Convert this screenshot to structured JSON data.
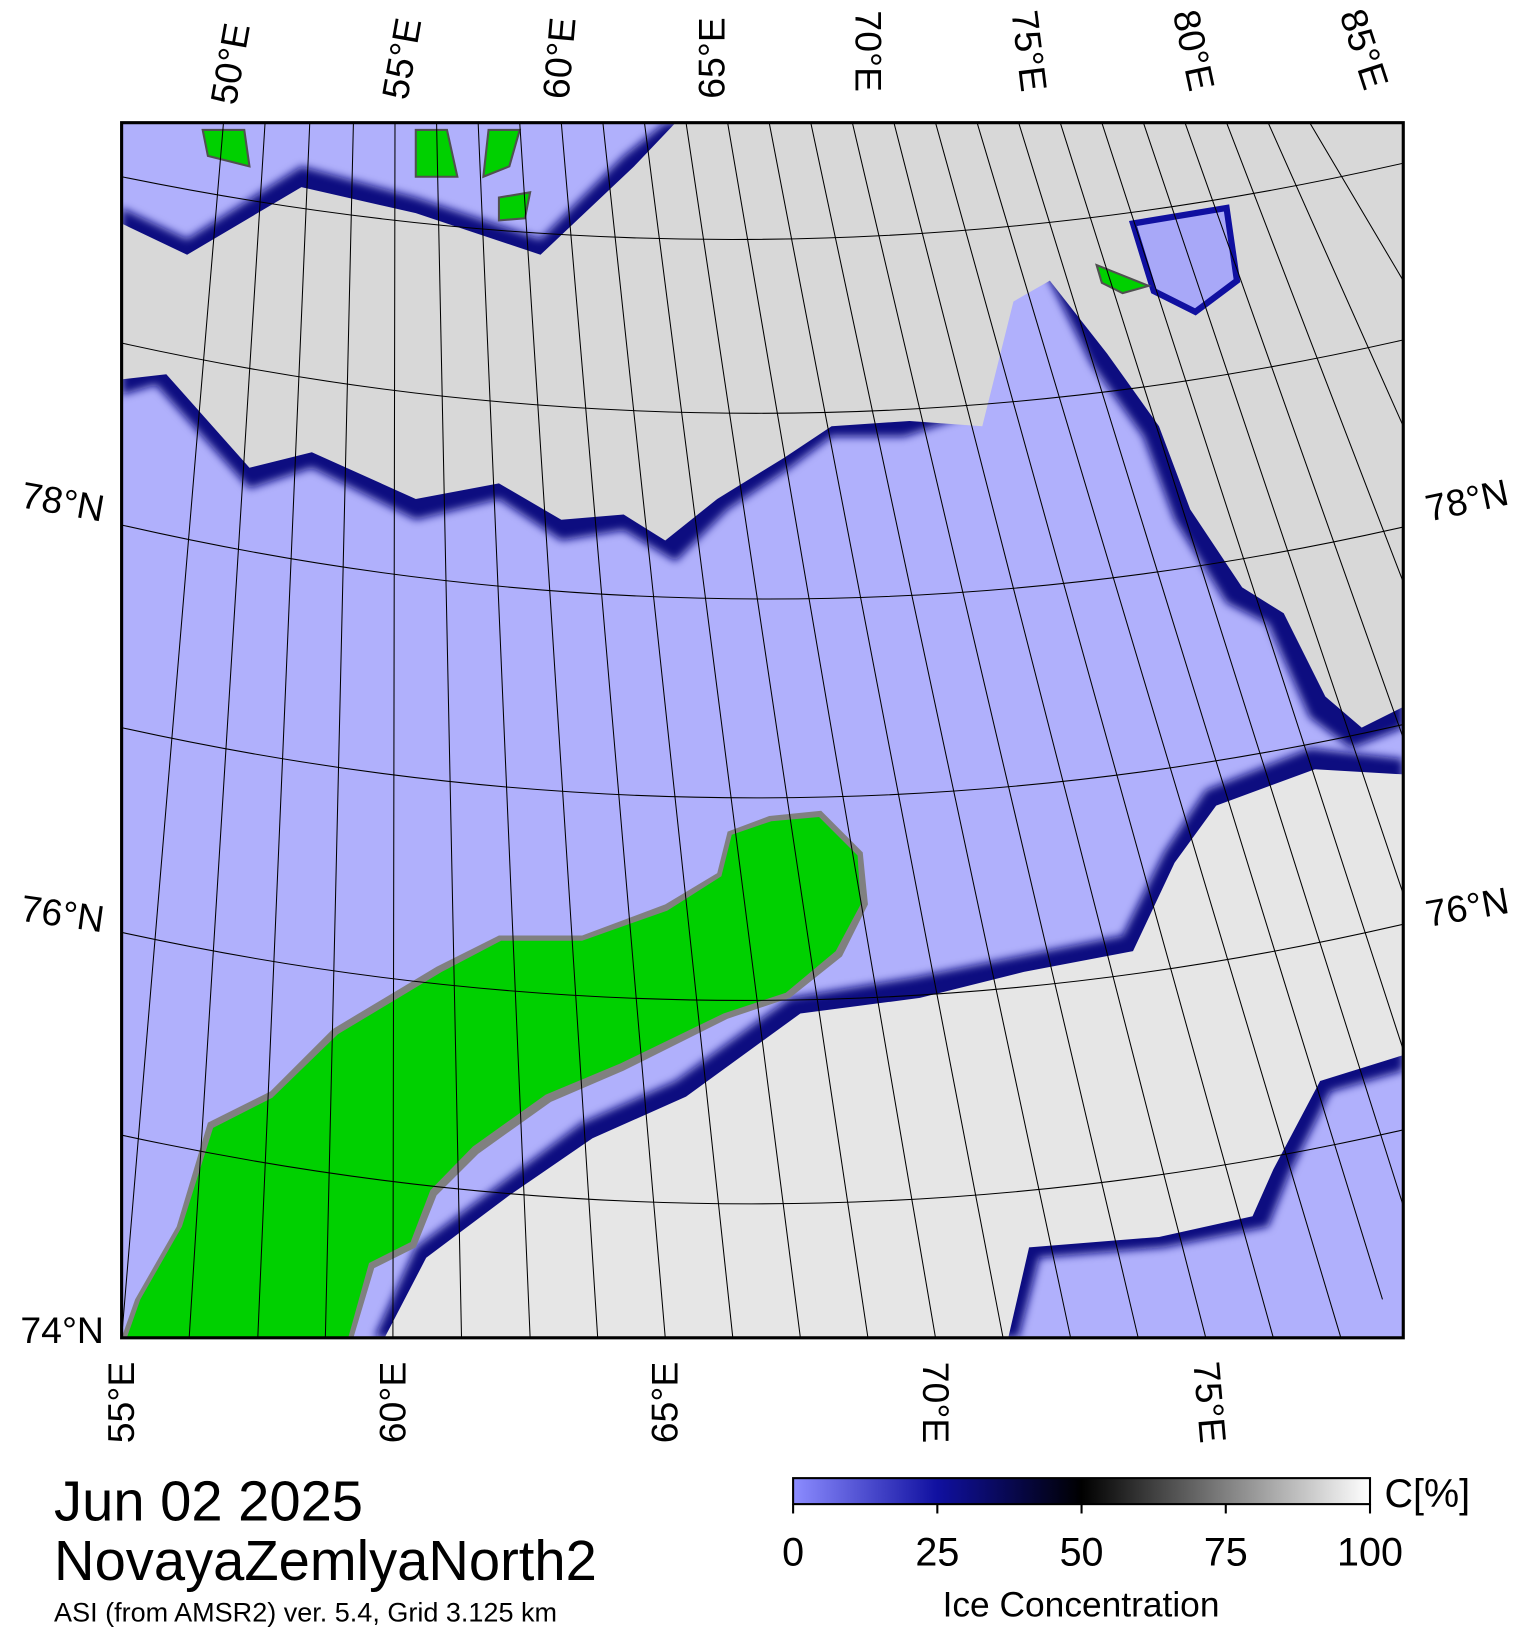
{
  "map": {
    "top_labels": [
      "50°E",
      "55°E",
      "60°E",
      "65°E",
      "70°E",
      "75°E",
      "80°E",
      "85°E"
    ],
    "bottom_labels": [
      "55°E",
      "60°E",
      "65°E",
      "70°E",
      "75°E"
    ],
    "left_labels": [
      "78°N",
      "76°N",
      "74°N"
    ],
    "right_labels": [
      "78°N",
      "76°N"
    ]
  },
  "legend": {
    "limits": [
      0,
      100
    ],
    "ticks": [
      0,
      25,
      50,
      75,
      100
    ],
    "unit": "C[%]",
    "label": "Ice Concentration"
  },
  "caption": {
    "date": "Jun 02 2025",
    "region": "NovayaZemlyaNorth2",
    "source": "ASI (from AMSR2) ver. 5.4,  Grid 3.125 km"
  }
}
